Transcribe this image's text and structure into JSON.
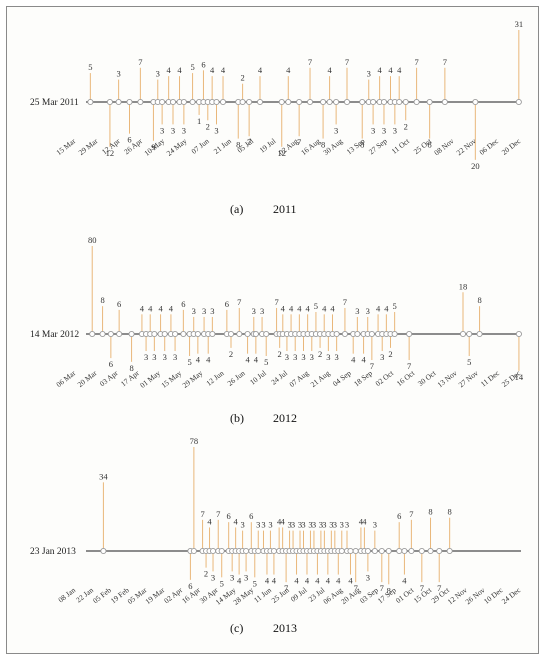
{
  "chart_data": [
    {
      "type": "timeline",
      "start_label": "25 Mar 2011",
      "caption_letter": "(a)",
      "caption_year": "2011",
      "ticks": [
        "15 Mar",
        "29 Mar",
        "12 Apr",
        "26 Apr",
        "10 May",
        "24 May",
        "07 Jun",
        "21 Jun",
        "05 Jul",
        "19 Jul",
        "02 Aug",
        "16 Aug",
        "30 Aug",
        "13 Sep",
        "27 Sep",
        "11 Oct",
        "25 Oct",
        "08 Nov",
        "22 Nov",
        "06 Dec",
        "20 Dec"
      ],
      "x_range": [
        0,
        20
      ],
      "events": [
        {
          "x": 0.2,
          "value": 5,
          "side": "up"
        },
        {
          "x": 1.1,
          "value": 12,
          "side": "down"
        },
        {
          "x": 1.5,
          "value": 3,
          "side": "up"
        },
        {
          "x": 2.0,
          "value": 6,
          "side": "down"
        },
        {
          "x": 2.5,
          "value": 7,
          "side": "up"
        },
        {
          "x": 3.1,
          "value": 9,
          "side": "down"
        },
        {
          "x": 3.3,
          "value": 3,
          "side": "up"
        },
        {
          "x": 3.5,
          "value": 3,
          "side": "down"
        },
        {
          "x": 3.8,
          "value": 4,
          "side": "up"
        },
        {
          "x": 4.0,
          "value": 3,
          "side": "down"
        },
        {
          "x": 4.3,
          "value": 4,
          "side": "up"
        },
        {
          "x": 4.5,
          "value": 3,
          "side": "down"
        },
        {
          "x": 4.9,
          "value": 5,
          "side": "up"
        },
        {
          "x": 5.2,
          "value": 1,
          "side": "down"
        },
        {
          "x": 5.4,
          "value": 6,
          "side": "up"
        },
        {
          "x": 5.6,
          "value": 2,
          "side": "down"
        },
        {
          "x": 5.8,
          "value": 4,
          "side": "up"
        },
        {
          "x": 6.0,
          "value": 3,
          "side": "down"
        },
        {
          "x": 6.3,
          "value": 4,
          "side": "up"
        },
        {
          "x": 7.0,
          "value": 8,
          "side": "down"
        },
        {
          "x": 7.2,
          "value": 2,
          "side": "up"
        },
        {
          "x": 7.5,
          "value": 7,
          "side": "down"
        },
        {
          "x": 8.0,
          "value": 4,
          "side": "up"
        },
        {
          "x": 9.0,
          "value": 12,
          "side": "down"
        },
        {
          "x": 9.3,
          "value": 4,
          "side": "up"
        },
        {
          "x": 9.8,
          "value": 7,
          "side": "down"
        },
        {
          "x": 10.3,
          "value": 7,
          "side": "up"
        },
        {
          "x": 10.9,
          "value": 8,
          "side": "down"
        },
        {
          "x": 11.2,
          "value": 4,
          "side": "up"
        },
        {
          "x": 11.5,
          "value": 3,
          "side": "down"
        },
        {
          "x": 12.0,
          "value": 7,
          "side": "up"
        },
        {
          "x": 12.7,
          "value": 8,
          "side": "down"
        },
        {
          "x": 13.0,
          "value": 3,
          "side": "up"
        },
        {
          "x": 13.2,
          "value": 3,
          "side": "down"
        },
        {
          "x": 13.5,
          "value": 4,
          "side": "up"
        },
        {
          "x": 13.7,
          "value": 3,
          "side": "down"
        },
        {
          "x": 14.0,
          "value": 4,
          "side": "up"
        },
        {
          "x": 14.2,
          "value": 3,
          "side": "down"
        },
        {
          "x": 14.4,
          "value": 4,
          "side": "up"
        },
        {
          "x": 14.7,
          "value": 2,
          "side": "down"
        },
        {
          "x": 15.2,
          "value": 7,
          "side": "up"
        },
        {
          "x": 15.8,
          "value": 8,
          "side": "down"
        },
        {
          "x": 16.5,
          "value": 7,
          "side": "up"
        },
        {
          "x": 17.9,
          "value": 20,
          "side": "down"
        },
        {
          "x": 19.9,
          "value": 31,
          "side": "up"
        }
      ]
    },
    {
      "type": "timeline",
      "start_label": "14 Mar 2012",
      "caption_letter": "(b)",
      "caption_year": "2012",
      "ticks": [
        "06 Mar",
        "20 Mar",
        "03 Apr",
        "17 Apr",
        "01 May",
        "15 May",
        "29 May",
        "12 Jun",
        "26 Jun",
        "10 Jul",
        "24 Jul",
        "07 Aug",
        "21 Aug",
        "04 Sep",
        "18 Sep",
        "02 Oct",
        "16 Oct",
        "30 Oct",
        "13 Nov",
        "27 Nov",
        "11 Dec",
        "25 Dec"
      ],
      "x_range": [
        0,
        21
      ],
      "events": [
        {
          "x": 0.3,
          "value": 80,
          "side": "up"
        },
        {
          "x": 0.8,
          "value": 8,
          "side": "up"
        },
        {
          "x": 1.2,
          "value": 6,
          "side": "down"
        },
        {
          "x": 1.6,
          "value": 6,
          "side": "up"
        },
        {
          "x": 2.2,
          "value": 8,
          "side": "down"
        },
        {
          "x": 2.7,
          "value": 4,
          "side": "up"
        },
        {
          "x": 2.9,
          "value": 3,
          "side": "down"
        },
        {
          "x": 3.1,
          "value": 4,
          "side": "up"
        },
        {
          "x": 3.3,
          "value": 3,
          "side": "down"
        },
        {
          "x": 3.6,
          "value": 4,
          "side": "up"
        },
        {
          "x": 3.8,
          "value": 3,
          "side": "down"
        },
        {
          "x": 4.1,
          "value": 4,
          "side": "up"
        },
        {
          "x": 4.3,
          "value": 3,
          "side": "down"
        },
        {
          "x": 4.7,
          "value": 6,
          "side": "up"
        },
        {
          "x": 5.0,
          "value": 5,
          "side": "down"
        },
        {
          "x": 5.2,
          "value": 3,
          "side": "up"
        },
        {
          "x": 5.4,
          "value": 4,
          "side": "down"
        },
        {
          "x": 5.7,
          "value": 3,
          "side": "up"
        },
        {
          "x": 5.9,
          "value": 4,
          "side": "down"
        },
        {
          "x": 6.1,
          "value": 3,
          "side": "up"
        },
        {
          "x": 6.8,
          "value": 6,
          "side": "up"
        },
        {
          "x": 7.0,
          "value": 2,
          "side": "down"
        },
        {
          "x": 7.4,
          "value": 7,
          "side": "up"
        },
        {
          "x": 7.8,
          "value": 4,
          "side": "down"
        },
        {
          "x": 8.1,
          "value": 3,
          "side": "up"
        },
        {
          "x": 8.2,
          "value": 4,
          "side": "down"
        },
        {
          "x": 8.5,
          "value": 3,
          "side": "up"
        },
        {
          "x": 8.7,
          "value": 5,
          "side": "down"
        },
        {
          "x": 9.2,
          "value": 7,
          "side": "up"
        },
        {
          "x": 9.35,
          "value": 2,
          "side": "down"
        },
        {
          "x": 9.5,
          "value": 4,
          "side": "up"
        },
        {
          "x": 9.7,
          "value": 3,
          "side": "down"
        },
        {
          "x": 9.9,
          "value": 4,
          "side": "up"
        },
        {
          "x": 10.1,
          "value": 3,
          "side": "down"
        },
        {
          "x": 10.3,
          "value": 4,
          "side": "up"
        },
        {
          "x": 10.5,
          "value": 3,
          "side": "down"
        },
        {
          "x": 10.7,
          "value": 4,
          "side": "up"
        },
        {
          "x": 10.9,
          "value": 3,
          "side": "down"
        },
        {
          "x": 11.1,
          "value": 5,
          "side": "up"
        },
        {
          "x": 11.3,
          "value": 2,
          "side": "down"
        },
        {
          "x": 11.5,
          "value": 4,
          "side": "up"
        },
        {
          "x": 11.7,
          "value": 3,
          "side": "down"
        },
        {
          "x": 11.9,
          "value": 4,
          "side": "up"
        },
        {
          "x": 12.1,
          "value": 3,
          "side": "down"
        },
        {
          "x": 12.5,
          "value": 7,
          "side": "up"
        },
        {
          "x": 12.9,
          "value": 4,
          "side": "down"
        },
        {
          "x": 13.1,
          "value": 3,
          "side": "up"
        },
        {
          "x": 13.4,
          "value": 4,
          "side": "down"
        },
        {
          "x": 13.6,
          "value": 3,
          "side": "up"
        },
        {
          "x": 13.8,
          "value": 7,
          "side": "down"
        },
        {
          "x": 14.1,
          "value": 4,
          "side": "up"
        },
        {
          "x": 14.3,
          "value": 3,
          "side": "down"
        },
        {
          "x": 14.5,
          "value": 4,
          "side": "up"
        },
        {
          "x": 14.7,
          "value": 2,
          "side": "down"
        },
        {
          "x": 14.9,
          "value": 5,
          "side": "up"
        },
        {
          "x": 15.6,
          "value": 7,
          "side": "down"
        },
        {
          "x": 18.2,
          "value": 18,
          "side": "up"
        },
        {
          "x": 18.5,
          "value": 5,
          "side": "down"
        },
        {
          "x": 19.0,
          "value": 8,
          "side": "up"
        },
        {
          "x": 20.9,
          "value": 14,
          "side": "down"
        }
      ]
    },
    {
      "type": "timeline",
      "start_label": "23 Jan 2013",
      "caption_letter": "(c)",
      "caption_year": "2013",
      "ticks": [
        "08 Jan",
        "22 Jan",
        "05 Feb",
        "19 Feb",
        "05 Mar",
        "19 Mar",
        "02 Apr",
        "16 Apr",
        "30 Apr",
        "14 May",
        "28 May",
        "11 Jun",
        "25 Jun",
        "09 Jul",
        "23 Jul",
        "06 Aug",
        "20 Aug",
        "03 Sep",
        "17 Sep",
        "01 Oct",
        "15 Oct",
        "29 Oct",
        "12 Nov",
        "26 Nov",
        "10 Dec",
        "24 Dec"
      ],
      "x_range": [
        0,
        25
      ],
      "events": [
        {
          "x": 1.0,
          "value": 34,
          "side": "up"
        },
        {
          "x": 6.0,
          "value": 6,
          "side": "down"
        },
        {
          "x": 6.2,
          "value": 78,
          "side": "up"
        },
        {
          "x": 6.7,
          "value": 7,
          "side": "up"
        },
        {
          "x": 6.9,
          "value": 2,
          "side": "down"
        },
        {
          "x": 7.1,
          "value": 4,
          "side": "up"
        },
        {
          "x": 7.3,
          "value": 3,
          "side": "down"
        },
        {
          "x": 7.6,
          "value": 7,
          "side": "up"
        },
        {
          "x": 7.8,
          "value": 5,
          "side": "down"
        },
        {
          "x": 8.2,
          "value": 6,
          "side": "up"
        },
        {
          "x": 8.4,
          "value": 3,
          "side": "down"
        },
        {
          "x": 8.6,
          "value": 4,
          "side": "up"
        },
        {
          "x": 8.8,
          "value": 4,
          "side": "down"
        },
        {
          "x": 9.0,
          "value": 3,
          "side": "up"
        },
        {
          "x": 9.2,
          "value": 3,
          "side": "down"
        },
        {
          "x": 9.5,
          "value": 6,
          "side": "up"
        },
        {
          "x": 9.7,
          "value": 5,
          "side": "down"
        },
        {
          "x": 9.9,
          "value": 3,
          "side": "up"
        },
        {
          "x": 10.2,
          "value": 3,
          "side": "up"
        },
        {
          "x": 10.4,
          "value": 4,
          "side": "down"
        },
        {
          "x": 10.6,
          "value": 3,
          "side": "up"
        },
        {
          "x": 10.8,
          "value": 4,
          "side": "down"
        },
        {
          "x": 11.1,
          "value": 4,
          "side": "up"
        },
        {
          "x": 11.3,
          "value": 4,
          "side": "up"
        },
        {
          "x": 11.5,
          "value": 7,
          "side": "down"
        },
        {
          "x": 11.7,
          "value": 3,
          "side": "up"
        },
        {
          "x": 11.9,
          "value": 3,
          "side": "up"
        },
        {
          "x": 12.1,
          "value": 4,
          "side": "down"
        },
        {
          "x": 12.3,
          "value": 3,
          "side": "up"
        },
        {
          "x": 12.5,
          "value": 3,
          "side": "up"
        },
        {
          "x": 12.7,
          "value": 4,
          "side": "down"
        },
        {
          "x": 12.9,
          "value": 3,
          "side": "up"
        },
        {
          "x": 13.1,
          "value": 3,
          "side": "up"
        },
        {
          "x": 13.3,
          "value": 4,
          "side": "down"
        },
        {
          "x": 13.5,
          "value": 3,
          "side": "up"
        },
        {
          "x": 13.7,
          "value": 3,
          "side": "up"
        },
        {
          "x": 13.9,
          "value": 4,
          "side": "down"
        },
        {
          "x": 14.1,
          "value": 3,
          "side": "up"
        },
        {
          "x": 14.3,
          "value": 3,
          "side": "up"
        },
        {
          "x": 14.5,
          "value": 4,
          "side": "down"
        },
        {
          "x": 14.7,
          "value": 3,
          "side": "up"
        },
        {
          "x": 15.0,
          "value": 3,
          "side": "up"
        },
        {
          "x": 15.2,
          "value": 4,
          "side": "down"
        },
        {
          "x": 15.5,
          "value": 7,
          "side": "down"
        },
        {
          "x": 15.8,
          "value": 4,
          "side": "up"
        },
        {
          "x": 16.0,
          "value": 4,
          "side": "up"
        },
        {
          "x": 16.2,
          "value": 3,
          "side": "down"
        },
        {
          "x": 16.6,
          "value": 3,
          "side": "up"
        },
        {
          "x": 17.0,
          "value": 7,
          "side": "down"
        },
        {
          "x": 17.4,
          "value": 8,
          "side": "down"
        },
        {
          "x": 18.0,
          "value": 6,
          "side": "up"
        },
        {
          "x": 18.3,
          "value": 4,
          "side": "down"
        },
        {
          "x": 18.7,
          "value": 7,
          "side": "up"
        },
        {
          "x": 19.3,
          "value": 7,
          "side": "down"
        },
        {
          "x": 19.8,
          "value": 8,
          "side": "up"
        },
        {
          "x": 20.3,
          "value": 7,
          "side": "down"
        },
        {
          "x": 20.9,
          "value": 8,
          "side": "up"
        }
      ]
    }
  ]
}
